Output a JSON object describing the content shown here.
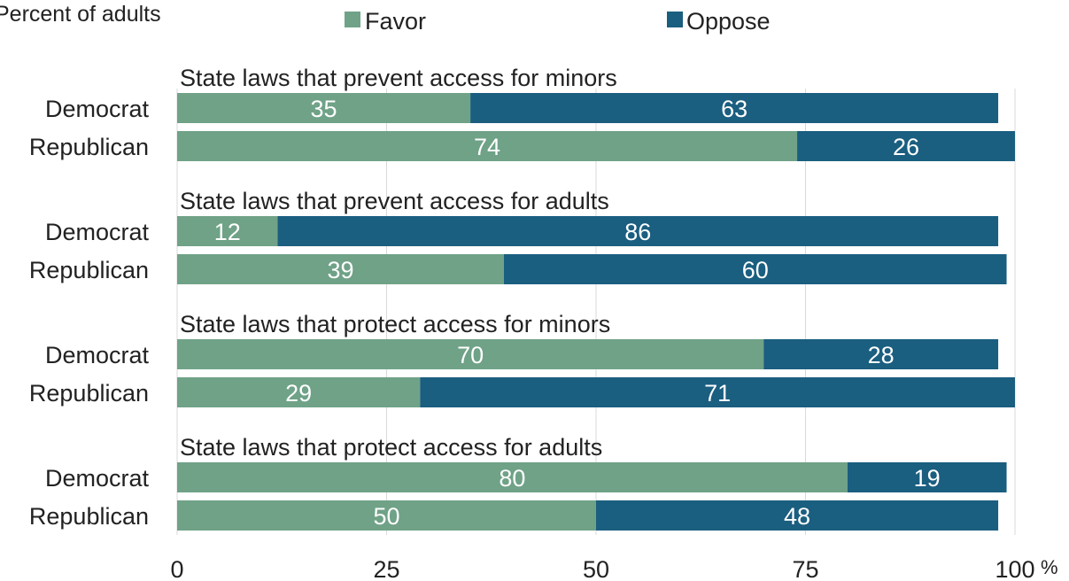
{
  "chart_data": {
    "type": "bar",
    "orientation": "horizontal",
    "stacked": true,
    "subtitle": "Percent of adults",
    "legend": {
      "placement": "top",
      "entries": [
        "Favor",
        "Oppose"
      ]
    },
    "colors": {
      "Favor": "#6fa287",
      "Oppose": "#1a5e80",
      "grid": "#d9d9d9",
      "text": "#222222"
    },
    "xlim": [
      0,
      100
    ],
    "x_ticks": [
      "0",
      "25",
      "50",
      "75",
      "100"
    ],
    "x_unit": "%",
    "grid": true,
    "groups": [
      {
        "title": "State laws that prevent access for minors",
        "rows": [
          {
            "label": "Democrat",
            "favor": 35,
            "oppose": 63
          },
          {
            "label": "Republican",
            "favor": 74,
            "oppose": 26
          }
        ]
      },
      {
        "title": "State laws that prevent access for adults",
        "rows": [
          {
            "label": "Democrat",
            "favor": 12,
            "oppose": 86
          },
          {
            "label": "Republican",
            "favor": 39,
            "oppose": 60
          }
        ]
      },
      {
        "title": "State laws that protect access for minors",
        "rows": [
          {
            "label": "Democrat",
            "favor": 70,
            "oppose": 28
          },
          {
            "label": "Republican",
            "favor": 29,
            "oppose": 71
          }
        ]
      },
      {
        "title": "State laws that protect access for adults",
        "rows": [
          {
            "label": "Democrat",
            "favor": 80,
            "oppose": 19
          },
          {
            "label": "Republican",
            "favor": 50,
            "oppose": 48
          }
        ]
      }
    ]
  }
}
